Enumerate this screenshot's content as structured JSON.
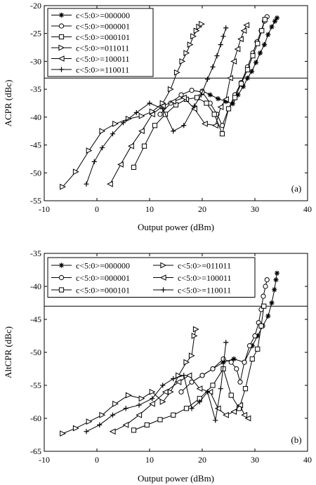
{
  "chart_data": [
    {
      "type": "line",
      "panel_label": "(a)",
      "xlabel": "Output power (dBm)",
      "ylabel": "ACPR (dBc)",
      "xlim": [
        -10,
        40
      ],
      "ylim": [
        -55,
        -20
      ],
      "xticks": [
        -10,
        0,
        10,
        20,
        30,
        40
      ],
      "yticks": [
        -55,
        -50,
        -45,
        -40,
        -35,
        -30,
        -25,
        -20
      ],
      "threshold_y": -33,
      "legend_position": "top-left",
      "legend_columns": 1,
      "series": [
        {
          "name": "c<5:0>=000000",
          "marker": "star",
          "x": [
            20.0,
            21.5,
            23.0,
            24.5,
            25.8,
            26.8,
            27.8,
            28.6,
            29.4,
            30.2,
            31.0,
            31.8,
            32.5,
            33.2,
            33.8,
            34.2
          ],
          "y": [
            -35.3,
            -36.0,
            -36.7,
            -37.2,
            -37.6,
            -36.0,
            -34.5,
            -33.0,
            -31.8,
            -30.2,
            -28.5,
            -27.0,
            -25.2,
            -23.8,
            -22.8,
            -22.2
          ]
        },
        {
          "name": "c<5:0>=000001",
          "marker": "circle",
          "x": [
            12.0,
            14.0,
            16.0,
            18.0,
            20.0,
            21.5,
            22.8,
            23.8,
            25.0,
            26.2,
            27.4,
            28.6,
            29.6,
            30.4,
            31.2,
            31.8,
            32.3
          ],
          "y": [
            -39.5,
            -37.5,
            -36.0,
            -35.2,
            -35.5,
            -37.5,
            -39.5,
            -41.5,
            -38.5,
            -36.0,
            -33.8,
            -31.0,
            -28.5,
            -26.5,
            -24.5,
            -22.8,
            -22.0
          ]
        },
        {
          "name": "c<5:0>=000101",
          "marker": "square",
          "x": [
            7.0,
            9.0,
            11.0,
            13.0,
            15.0,
            17.0,
            19.0,
            20.8,
            22.3,
            23.8,
            25.0,
            26.2,
            27.4,
            28.6,
            29.6,
            30.5,
            31.3,
            31.9
          ],
          "y": [
            -49.0,
            -45.2,
            -41.5,
            -39.5,
            -37.8,
            -36.8,
            -36.5,
            -37.5,
            -39.5,
            -43.0,
            -38.5,
            -36.5,
            -34.0,
            -31.5,
            -29.0,
            -26.8,
            -24.5,
            -22.5
          ]
        },
        {
          "name": "c<5:0>=011011",
          "marker": "triangle-right",
          "x": [
            -6.5,
            -4.0,
            -1.5,
            1.0,
            3.5,
            6.0,
            8.5,
            10.5,
            12.5,
            14.0,
            15.2,
            16.2,
            17.0,
            17.7,
            18.3,
            18.9,
            19.4,
            19.9
          ],
          "y": [
            -52.5,
            -49.8,
            -46.0,
            -42.5,
            -41.2,
            -40.3,
            -39.8,
            -39.0,
            -37.5,
            -35.0,
            -32.0,
            -30.0,
            -28.5,
            -27.0,
            -25.5,
            -24.5,
            -23.8,
            -23.3
          ]
        },
        {
          "name": "c<5:0>=100011",
          "marker": "triangle-left",
          "x": [
            2.5,
            4.5,
            6.5,
            8.5,
            10.5,
            12.5,
            14.5,
            16.5,
            18.5,
            20.5,
            22.5,
            23.5,
            24.5,
            25.3,
            26.0,
            26.7,
            27.3,
            27.9,
            28.4
          ],
          "y": [
            -52.0,
            -48.5,
            -45.2,
            -42.5,
            -39.5,
            -38.0,
            -37.2,
            -36.5,
            -38.5,
            -41.2,
            -41.5,
            -38.2,
            -36.8,
            -33.0,
            -30.0,
            -27.8,
            -26.0,
            -24.5,
            -23.5
          ]
        },
        {
          "name": "c<5:0>=110011",
          "marker": "plus",
          "x": [
            -2.0,
            -0.5,
            1.0,
            3.0,
            5.0,
            7.5,
            10.0,
            12.5,
            14.5,
            16.5,
            18.5,
            19.8,
            21.0,
            22.0,
            22.8,
            23.5,
            24.0,
            24.5
          ],
          "y": [
            -52.0,
            -48.0,
            -45.5,
            -43.0,
            -41.0,
            -39.2,
            -37.5,
            -38.5,
            -42.5,
            -41.5,
            -38.0,
            -36.0,
            -33.2,
            -31.0,
            -29.0,
            -27.0,
            -25.5,
            -24.0
          ]
        }
      ]
    },
    {
      "type": "line",
      "panel_label": "(b)",
      "xlabel": "Output power (dBm)",
      "ylabel": "AltCPR (dBc)",
      "xlim": [
        -10,
        40
      ],
      "ylim": [
        -65,
        -35
      ],
      "xticks": [
        -10,
        0,
        10,
        20,
        30,
        40
      ],
      "yticks": [
        -65,
        -60,
        -55,
        -50,
        -45,
        -40,
        -35
      ],
      "threshold_y": -43,
      "legend_position": "top-left",
      "legend_columns": 2,
      "series": [
        {
          "name": "c<5:0>=000000",
          "marker": "star",
          "x": [
            20.0,
            22.0,
            24.0,
            26.0,
            28.0,
            29.5,
            30.5,
            31.5,
            32.5,
            33.2,
            33.7,
            34.0,
            34.2
          ],
          "y": [
            -53.5,
            -52.5,
            -51.5,
            -51.0,
            -51.5,
            -49.0,
            -47.5,
            -46.0,
            -44.5,
            -42.5,
            -40.5,
            -39.0,
            -38.0
          ]
        },
        {
          "name": "c<5:0>=000001",
          "marker": "circle",
          "x": [
            16.0,
            18.0,
            20.0,
            22.0,
            24.0,
            25.5,
            26.5,
            27.2,
            28.0,
            29.0,
            30.0,
            30.7,
            31.2,
            31.6,
            32.0,
            32.3
          ],
          "y": [
            -56.0,
            -54.5,
            -53.5,
            -52.5,
            -51.0,
            -51.5,
            -52.5,
            -54.5,
            -51.5,
            -49.0,
            -47.5,
            -45.5,
            -43.5,
            -41.5,
            -40.0,
            -39.0
          ]
        },
        {
          "name": "c<5:0>=000101",
          "marker": "square",
          "x": [
            7.0,
            9.5,
            12.0,
            14.5,
            17.0,
            19.5,
            22.0,
            24.0,
            25.5,
            27.0,
            28.2,
            29.5,
            30.5,
            31.2,
            31.7
          ],
          "y": [
            -61.8,
            -61.0,
            -60.2,
            -59.5,
            -58.5,
            -57.0,
            -55.0,
            -52.5,
            -56.5,
            -58.5,
            -55.5,
            -51.0,
            -49.5,
            -46.0,
            -43.0
          ]
        },
        {
          "name": "c<5:0>=011011",
          "marker": "triangle-right",
          "x": [
            -6.5,
            -4.0,
            -1.5,
            1.0,
            3.5,
            6.0,
            8.5,
            10.5,
            12.5,
            14.0,
            15.5,
            17.0,
            18.0,
            18.5,
            18.8
          ],
          "y": [
            -62.3,
            -61.5,
            -60.5,
            -59.5,
            -57.8,
            -56.5,
            -57.0,
            -56.0,
            -57.5,
            -56.0,
            -53.5,
            -51.5,
            -50.5,
            -47.5,
            -46.5
          ]
        },
        {
          "name": "c<5:0>=100011",
          "marker": "triangle-left",
          "x": [
            3.0,
            5.5,
            8.0,
            10.5,
            13.0,
            15.5,
            17.5,
            19.5,
            21.5,
            23.0,
            24.5,
            26.0,
            27.2,
            28.0,
            28.7
          ],
          "y": [
            -62.0,
            -61.0,
            -59.5,
            -57.8,
            -56.0,
            -54.5,
            -53.5,
            -55.5,
            -56.0,
            -58.5,
            -59.5,
            -59.0,
            -58.0,
            -59.5,
            -60.0
          ]
        },
        {
          "name": "c<5:0>=110011",
          "marker": "plus",
          "x": [
            -2.0,
            0.5,
            3.0,
            5.5,
            8.0,
            10.5,
            12.5,
            14.5,
            16.5,
            18.0,
            19.5,
            21.0,
            22.5,
            23.5,
            24.5
          ],
          "y": [
            -62.0,
            -61.0,
            -59.5,
            -58.5,
            -58.0,
            -57.0,
            -55.0,
            -54.0,
            -53.5,
            -58.5,
            -57.5,
            -56.0,
            -60.3,
            -55.5,
            -48.5
          ]
        }
      ]
    }
  ]
}
